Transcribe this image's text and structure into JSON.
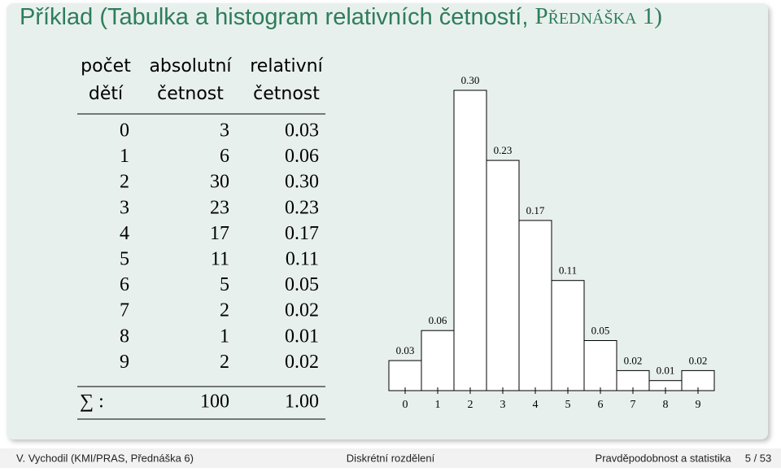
{
  "title_main": "Příklad (Tabulka a histogram relativních četností, ",
  "title_caps": "Přednáška",
  "title_end": " 1)",
  "table": {
    "header": [
      [
        "počet",
        "dětí"
      ],
      [
        "absolutní",
        "četnost"
      ],
      [
        "relativní",
        "četnost"
      ]
    ],
    "rows": [
      [
        "0",
        "3",
        "0.03"
      ],
      [
        "1",
        "6",
        "0.06"
      ],
      [
        "2",
        "30",
        "0.30"
      ],
      [
        "3",
        "23",
        "0.23"
      ],
      [
        "4",
        "17",
        "0.17"
      ],
      [
        "5",
        "11",
        "0.11"
      ],
      [
        "6",
        "5",
        "0.05"
      ],
      [
        "7",
        "2",
        "0.02"
      ],
      [
        "8",
        "1",
        "0.01"
      ],
      [
        "9",
        "2",
        "0.02"
      ]
    ],
    "sum": [
      "∑ :",
      "100",
      "1.00"
    ]
  },
  "chart_data": {
    "type": "bar",
    "categories": [
      "0",
      "1",
      "2",
      "3",
      "4",
      "5",
      "6",
      "7",
      "8",
      "9"
    ],
    "values": [
      0.03,
      0.06,
      0.3,
      0.23,
      0.17,
      0.11,
      0.05,
      0.02,
      0.01,
      0.02
    ],
    "value_labels": [
      "0.03",
      "0.06",
      "0.30",
      "0.23",
      "0.17",
      "0.11",
      "0.05",
      "0.02",
      "0.01",
      "0.02"
    ],
    "color": "#ffffff"
  },
  "footer": [
    "V. Vychodil (KMI/PRAS, Přednáška 6)",
    "Diskrétní rozdělení",
    "Pravděpodobnost a statistika",
    "5 / 53"
  ]
}
